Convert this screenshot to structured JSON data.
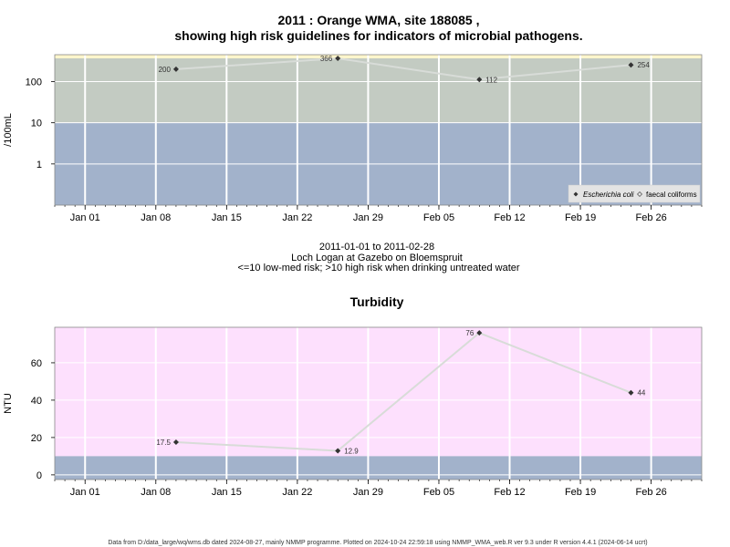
{
  "page": {
    "title_line1": "2011 : Orange WMA, site 188085 ,",
    "title_line2": "showing high risk guidelines for indicators of microbial pathogens.",
    "subtitle_line1": "2011-01-01 to 2011-02-28",
    "subtitle_line2": "Loch Logan at Gazebo on Bloemspruit",
    "subtitle_line3": "<=10 low-med risk; >10 high risk when drinking untreated water",
    "footer": "Data from D:/data_large/wq/wms.db dated 2024-08-27, mainly NMMP programme. Plotted on 2024-10-24 22:59:18 using NMMP_WMA_web.R ver 9.3 under R version 4.4.1 (2024-06-14 ucrt)"
  },
  "colors": {
    "low_risk_band": "#a2b2cb",
    "high_risk_band": "#c3cbc2",
    "upper_band": "#fff6cc",
    "turbidity_high_band": "#fde0fd",
    "line": "#d8dcd8",
    "marker": "#333333",
    "grid": "#ffffff"
  },
  "chart_data": [
    {
      "type": "line",
      "title": "",
      "ylabel": "/100mL",
      "yscale": "log",
      "x_ticks": [
        "Jan 01",
        "Jan 08",
        "Jan 15",
        "Jan 22",
        "Jan 29",
        "Feb 05",
        "Feb 12",
        "Feb 19",
        "Feb 26"
      ],
      "x_tick_dates": [
        "2011-01-01",
        "2011-01-08",
        "2011-01-15",
        "2011-01-22",
        "2011-01-29",
        "2011-02-05",
        "2011-02-12",
        "2011-02-19",
        "2011-02-26"
      ],
      "y_ticks": [
        "1",
        "10",
        "100"
      ],
      "y_tick_values": [
        1,
        10,
        100
      ],
      "ylim": [
        0.1,
        450
      ],
      "xlim": [
        "2010-12-29",
        "2011-03-03"
      ],
      "guideline": 10,
      "legend": {
        "position": "bottom-right",
        "entries": [
          "Escherichia coli",
          "faecal coliforms"
        ]
      },
      "series": [
        {
          "name": "Escherichia coli",
          "x": [
            "2011-01-10",
            "2011-01-26",
            "2011-02-09",
            "2011-02-24"
          ],
          "values": [
            200,
            366,
            112,
            254
          ],
          "labels": [
            "200",
            "366",
            "112",
            "254"
          ]
        }
      ]
    },
    {
      "type": "line",
      "title": "Turbidity",
      "ylabel": "NTU",
      "x_ticks": [
        "Jan 01",
        "Jan 08",
        "Jan 15",
        "Jan 22",
        "Jan 29",
        "Feb 05",
        "Feb 12",
        "Feb 19",
        "Feb 26"
      ],
      "x_tick_dates": [
        "2011-01-01",
        "2011-01-08",
        "2011-01-15",
        "2011-01-22",
        "2011-01-29",
        "2011-02-05",
        "2011-02-12",
        "2011-02-19",
        "2011-02-26"
      ],
      "y_ticks": [
        "0",
        "20",
        "40",
        "60"
      ],
      "y_tick_values": [
        0,
        20,
        40,
        60
      ],
      "ylim": [
        -2.5,
        79
      ],
      "xlim": [
        "2010-12-29",
        "2011-03-03"
      ],
      "guideline": 10,
      "series": [
        {
          "x": [
            "2011-01-10",
            "2011-01-26",
            "2011-02-09",
            "2011-02-24"
          ],
          "values": [
            17.5,
            12.9,
            76,
            44
          ],
          "labels": [
            "17.5",
            "12.9",
            "76",
            "44"
          ]
        }
      ]
    }
  ]
}
